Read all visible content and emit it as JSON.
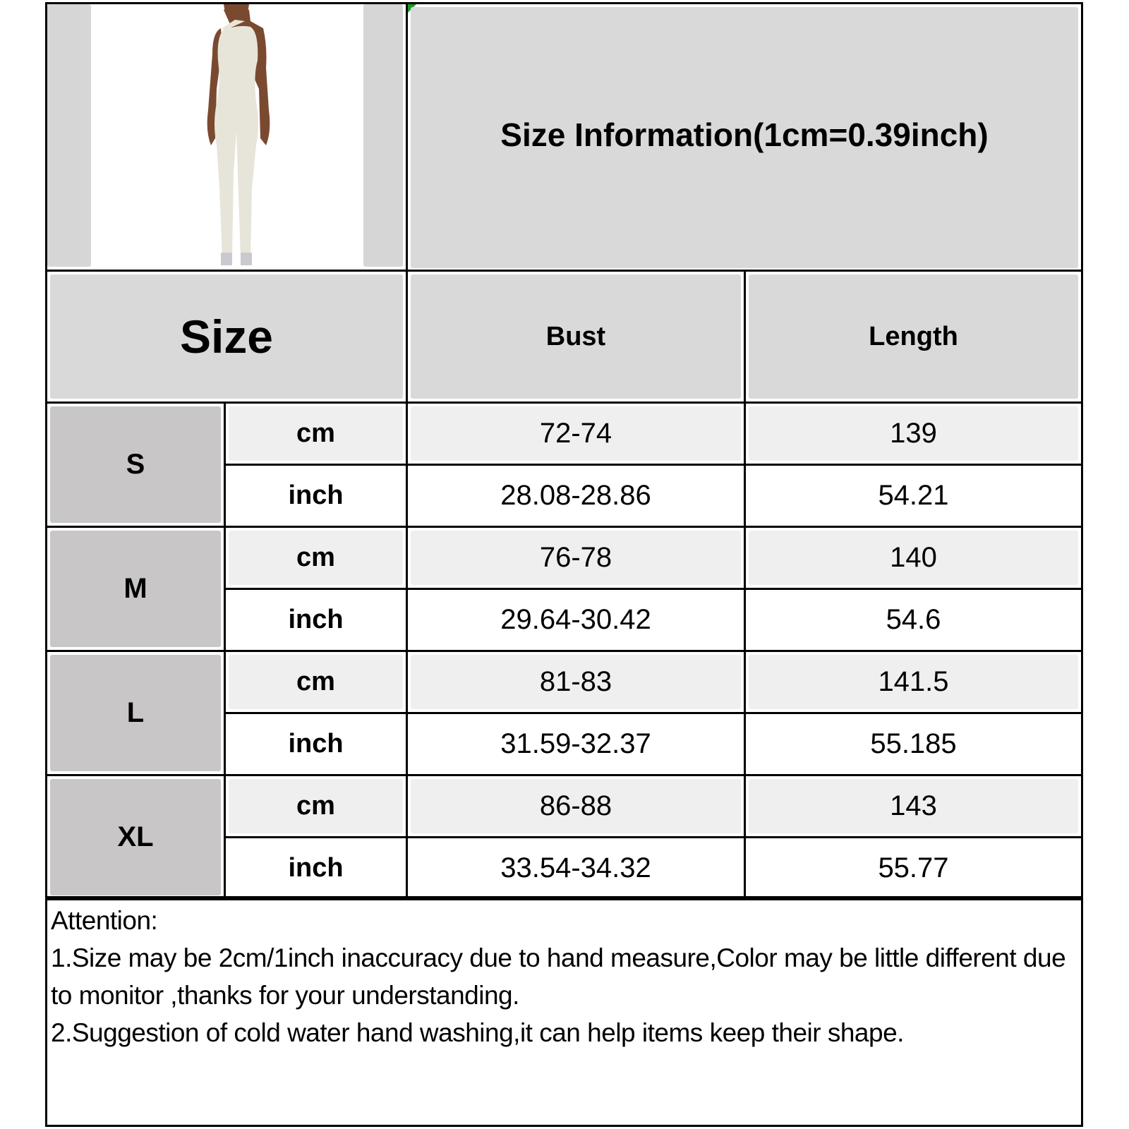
{
  "title": "Size Information(1cm=0.39inch)",
  "product_image": {
    "description_icon": "jumpsuit-photo"
  },
  "header": {
    "size": "Size",
    "columns": [
      "Bust",
      "Length"
    ]
  },
  "rows": [
    {
      "size": "S",
      "cm": {
        "unit": "cm",
        "bust": "72-74",
        "length": "139"
      },
      "inch": {
        "unit": "inch",
        "bust": "28.08-28.86",
        "length": "54.21"
      }
    },
    {
      "size": "M",
      "cm": {
        "unit": "cm",
        "bust": "76-78",
        "length": "140"
      },
      "inch": {
        "unit": "inch",
        "bust": "29.64-30.42",
        "length": "54.6"
      }
    },
    {
      "size": "L",
      "cm": {
        "unit": "cm",
        "bust": "81-83",
        "length": "141.5"
      },
      "inch": {
        "unit": "inch",
        "bust": "31.59-32.37",
        "length": "55.185"
      }
    },
    {
      "size": "XL",
      "cm": {
        "unit": "cm",
        "bust": "86-88",
        "length": "143"
      },
      "inch": {
        "unit": "inch",
        "bust": "33.54-34.32",
        "length": "55.77"
      }
    }
  ],
  "notes": {
    "heading": "Attention:",
    "line1": "1.Size may be 2cm/1inch inaccuracy due to hand measure,Color may be little different due to monitor ,thanks for your understanding.",
    "line2": "2.Suggestion of cold water hand washing,it can help items keep their shape."
  },
  "colors": {
    "header_bg": "#d9d9d9",
    "size_bg": "#c8c6c6",
    "cm_bg": "#efefef",
    "inch_bg": "#ffffff",
    "border": "#000000"
  }
}
